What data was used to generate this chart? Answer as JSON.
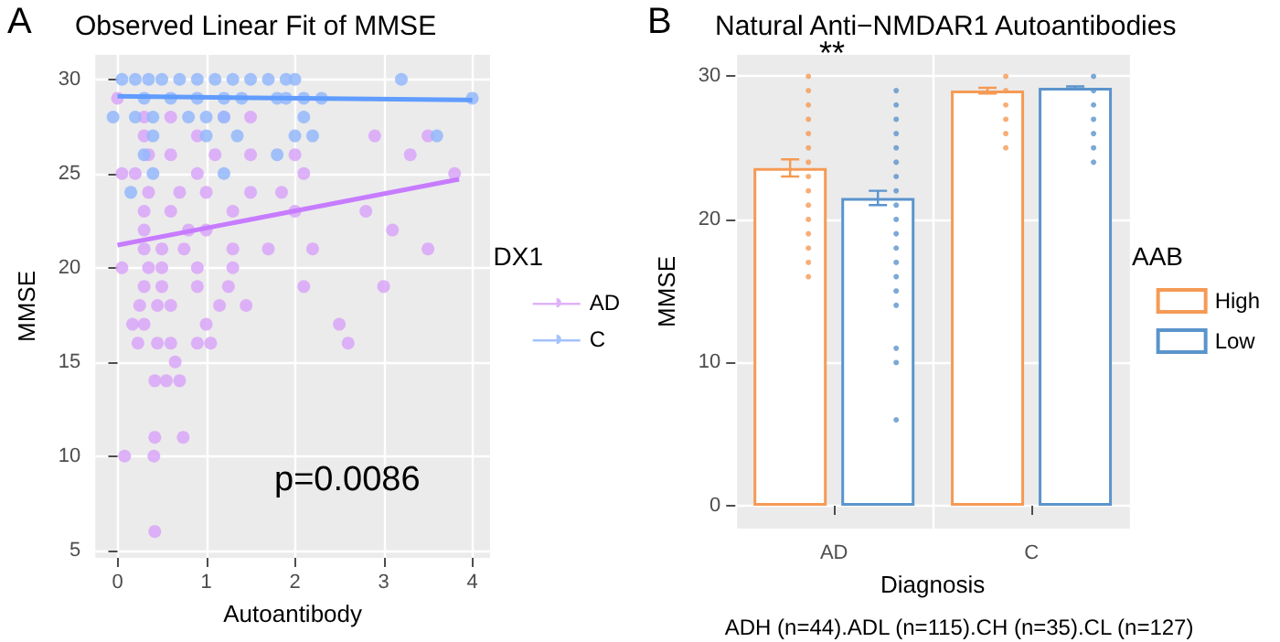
{
  "chart_data": [
    {
      "type": "scatter",
      "title": "Observed Linear Fit of MMSE",
      "xlabel": "Autoantibody",
      "ylabel": "MMSE",
      "legend_title": "DX1",
      "legend": "right",
      "grid": true,
      "xlim": [
        -0.25,
        4.2
      ],
      "xticks": [
        0,
        1,
        2,
        3,
        4
      ],
      "ylim": [
        4.6,
        31.3
      ],
      "yticks": [
        5,
        10,
        15,
        20,
        25,
        30
      ],
      "annotations": [
        "A",
        "p=0.0086"
      ],
      "series": [
        {
          "name": "AD",
          "color": "#d9a6f8",
          "x": [
            0,
            0.3,
            0.6,
            1.2,
            1.5,
            0.3,
            0.9,
            2.9,
            3.5,
            0.35,
            0.6,
            1.1,
            1.5,
            2.0,
            3.3,
            0.05,
            0.2,
            0.9,
            2.1,
            3.8,
            0.35,
            0.7,
            1.0,
            1.5,
            1.85,
            0.3,
            0.6,
            1.3,
            2.0,
            2.8,
            0.3,
            0.8,
            1.0,
            3.1,
            0.3,
            0.5,
            0.75,
            1.3,
            1.7,
            2.2,
            3.5,
            0.05,
            0.35,
            0.5,
            0.9,
            1.3,
            0.3,
            0.5,
            0.9,
            1.25,
            2.1,
            3.0,
            0.25,
            0.45,
            0.6,
            1.15,
            1.45,
            0.17,
            0.3,
            1.0,
            2.5,
            0.23,
            0.45,
            0.6,
            0.9,
            1.05,
            2.6,
            0.65,
            0.42,
            0.55,
            0.7,
            0.42,
            0.74,
            0.08,
            0.41,
            0.42
          ],
          "values": [
            29,
            28,
            28,
            28,
            28,
            27,
            27,
            27,
            27,
            26,
            26,
            26,
            26,
            26,
            26,
            25,
            25,
            25,
            25,
            25,
            24,
            24,
            24,
            24,
            24,
            23,
            23,
            23,
            23,
            23,
            22,
            22,
            22,
            22,
            21,
            21,
            21,
            21,
            21,
            21,
            21,
            20,
            20,
            20,
            20,
            20,
            19,
            19,
            19,
            19,
            19,
            19,
            18,
            18,
            18,
            18,
            18,
            17,
            17,
            17,
            17,
            16,
            16,
            16,
            16,
            16,
            16,
            15,
            14,
            14,
            14,
            11,
            11,
            10,
            10,
            6
          ]
        },
        {
          "name": "C",
          "color": "#94b8fb",
          "x": [
            0.05,
            0.2,
            0.35,
            0.5,
            0.7,
            0.9,
            1.1,
            1.3,
            1.5,
            1.7,
            1.9,
            2.0,
            3.2,
            0.3,
            0.6,
            0.9,
            1.2,
            1.4,
            1.8,
            1.9,
            2.1,
            2.3,
            4.0,
            -0.05,
            0.2,
            0.4,
            0.8,
            1.0,
            1.2,
            2.1,
            0.4,
            1.0,
            1.35,
            2.0,
            2.2,
            3.6,
            0.3,
            1.8,
            0.4,
            1.2,
            0.15
          ],
          "values": [
            30,
            30,
            30,
            30,
            30,
            30,
            30,
            30,
            30,
            30,
            30,
            30,
            30,
            29,
            29,
            29,
            29,
            29,
            29,
            29,
            29,
            29,
            29,
            28,
            28,
            28,
            28,
            28,
            28,
            28,
            27,
            27,
            27,
            27,
            27,
            27,
            26,
            26,
            25,
            25,
            24
          ]
        },
        {
          "type": "line",
          "color": "#c77cff",
          "x": [
            0,
            3.85
          ],
          "values": [
            21.2,
            24.7
          ]
        },
        {
          "type": "line",
          "color": "#619cff",
          "x": [
            0,
            4
          ],
          "values": [
            29.1,
            28.9
          ]
        }
      ]
    },
    {
      "type": "bar",
      "title": "Natural Anti−NMDAR1 Autoantibodies",
      "xlabel": "Diagnosis",
      "ylabel": "MMSE",
      "legend_title": "AAB",
      "legend": "right",
      "grid": true,
      "categories": [
        "AD",
        "C"
      ],
      "ylim": [
        -1.6,
        31.5
      ],
      "yticks": [
        0,
        10,
        20,
        30
      ],
      "annotations": [
        "B",
        "**",
        "ADH (n=44).ADL (n=115).CH (n=35).CL (n=127)"
      ],
      "series": [
        {
          "name": "High",
          "color": "#f59a55",
          "values": [
            23.6,
            29.0
          ],
          "errors": [
            0.6,
            0.2
          ]
        },
        {
          "name": "Low",
          "color": "#5b94cc",
          "values": [
            21.5,
            29.2
          ],
          "errors": [
            0.5,
            0.1
          ]
        },
        {
          "type": "scatter",
          "color": "#f59a55",
          "x": [
            "AD",
            "AD",
            "AD",
            "AD",
            "AD",
            "AD",
            "AD",
            "AD",
            "AD",
            "AD",
            "AD",
            "AD",
            "AD",
            "AD",
            "AD",
            "C",
            "C",
            "C",
            "C",
            "C",
            "C"
          ],
          "values": [
            30,
            29,
            28,
            27,
            26,
            25,
            24,
            23,
            22,
            21,
            20,
            19,
            18,
            17,
            16,
            30,
            29,
            28,
            27,
            26,
            25
          ]
        },
        {
          "type": "scatter",
          "color": "#5b94cc",
          "x": [
            "AD",
            "AD",
            "AD",
            "AD",
            "AD",
            "AD",
            "AD",
            "AD",
            "AD",
            "AD",
            "AD",
            "AD",
            "AD",
            "AD",
            "AD",
            "AD",
            "AD",
            "AD",
            "AD",
            "C",
            "C",
            "C",
            "C",
            "C",
            "C",
            "C"
          ],
          "values": [
            29,
            28,
            27,
            26,
            25,
            24,
            23,
            22,
            21,
            20,
            19,
            18,
            17,
            16,
            15,
            14,
            11,
            10,
            6,
            30,
            29,
            28,
            27,
            26,
            25,
            24
          ]
        }
      ]
    }
  ]
}
